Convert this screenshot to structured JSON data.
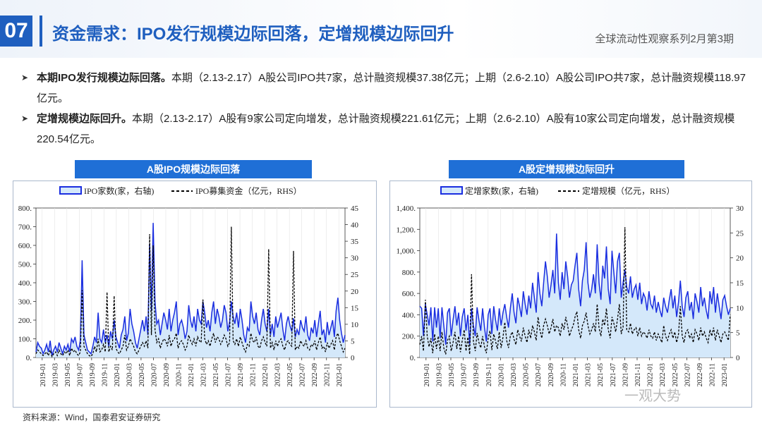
{
  "header": {
    "number": "07",
    "title": "资金需求：IPO发行规模边际回落，定增规模边际回升",
    "series": "全球流动性观察系列2月第3期"
  },
  "bullets": [
    {
      "bold": "本期IPO发行规模边际回落。",
      "text": "本期（2.13-2.17）A股公司IPO共7家，总计融资规模37.38亿元；上期（2.6-2.10）A股公司IPO共7家，总计融资规模118.97亿元。"
    },
    {
      "bold": "定增规模边际回升。",
      "text": "本期（2.13-2.17）A股有9家公司定向增发，总计融资规模221.61亿元；上期（2.6-2.10）A股有10家公司定向增发，总计融资规模220.54亿元。"
    }
  ],
  "footer": {
    "source": "资料来源：Wind，国泰君安证券研究",
    "watermark": "一观大势"
  },
  "colors": {
    "accent": "#1f5fbf",
    "header_bar": "#1f6fd6",
    "area_line": "#1a2ee0",
    "area_fill": "#d4e8fa"
  },
  "chart_data": [
    {
      "type": "line",
      "title": "A股IPO规模边际回落",
      "legend": [
        "IPO家数(家，右轴)",
        "IPO募集资金（亿元，RHS）"
      ],
      "legend_position": "top",
      "x_ticks": [
        "2019-01",
        "2019-03",
        "2019-05",
        "2019-07",
        "2019-09",
        "2019-11",
        "2020-01",
        "2020-03",
        "2020-05",
        "2020-07",
        "2020-09",
        "2020-11",
        "2021-01",
        "2021-03",
        "2021-05",
        "2021-07",
        "2021-09",
        "2021-11",
        "2022-01",
        "2022-03",
        "2022-05",
        "2022-07",
        "2022-09",
        "2022-11",
        "2023-01"
      ],
      "left_axis": {
        "ticks": [
          "0.",
          "100.",
          "200.",
          "300.",
          "400.",
          "500.",
          "600.",
          "700.",
          "800."
        ],
        "range": [
          0,
          800
        ]
      },
      "right_axis": {
        "ticks": [
          "0",
          "5",
          "10",
          "15",
          "20",
          "25",
          "30",
          "35",
          "40",
          "45"
        ],
        "range": [
          0,
          45
        ]
      },
      "series": [
        {
          "name": "IPO家数(家，右轴)",
          "style": "area",
          "axis": "left",
          "values": [
            30,
            80,
            60,
            50,
            20,
            40,
            70,
            30,
            90,
            10,
            40,
            60,
            30,
            80,
            50,
            20,
            60,
            40,
            70,
            30,
            100,
            80,
            110,
            60,
            40,
            90,
            520,
            120,
            80,
            40,
            30,
            20,
            60,
            110,
            80,
            240,
            100,
            80,
            150,
            80,
            120,
            60,
            140,
            100,
            200,
            110,
            80,
            50,
            120,
            150,
            220,
            90,
            130,
            260,
            180,
            140,
            80,
            50,
            100,
            150,
            200,
            140,
            220,
            120,
            610,
            250,
            720,
            300,
            180,
            200,
            120,
            180,
            240,
            200,
            150,
            260,
            140,
            200,
            240,
            300,
            120,
            180,
            200,
            160,
            100,
            140,
            280,
            200,
            160,
            220,
            140,
            260,
            200,
            180,
            300,
            240,
            160,
            200,
            140,
            240,
            300,
            180,
            260,
            220,
            160,
            200,
            280,
            240,
            140,
            190,
            300,
            220,
            180,
            240,
            160,
            260,
            200,
            120,
            80,
            160,
            140,
            300,
            220,
            180,
            240,
            150,
            120,
            200,
            260,
            180,
            140,
            260,
            120,
            180,
            110,
            220,
            160,
            200,
            240,
            150,
            90,
            180,
            220,
            170,
            140,
            210,
            110,
            150,
            120,
            200,
            160,
            140,
            220,
            120,
            90,
            160,
            130,
            200,
            110,
            180,
            250,
            120,
            150,
            80,
            190,
            120,
            160,
            200,
            110,
            250,
            320,
            200,
            130,
            80,
            120
          ]
        },
        {
          "name": "IPO募集资金（亿元，RHS）",
          "style": "dashed",
          "axis": "left",
          "values": [
            20,
            40,
            30,
            20,
            10,
            20,
            30,
            10,
            40,
            5,
            20,
            30,
            10,
            40,
            20,
            10,
            30,
            20,
            40,
            10,
            50,
            30,
            40,
            20,
            10,
            30,
            360,
            60,
            40,
            20,
            10,
            5,
            20,
            60,
            30,
            100,
            30,
            40,
            70,
            30,
            350,
            30,
            60,
            40,
            330,
            50,
            30,
            20,
            40,
            60,
            120,
            40,
            60,
            100,
            80,
            60,
            30,
            20,
            40,
            60,
            80,
            60,
            90,
            50,
            660,
            120,
            600,
            150,
            80,
            100,
            50,
            80,
            100,
            90,
            60,
            120,
            60,
            90,
            100,
            130,
            50,
            80,
            90,
            70,
            40,
            60,
            120,
            90,
            70,
            100,
            60,
            110,
            90,
            80,
            310,
            100,
            70,
            90,
            60,
            100,
            130,
            80,
            110,
            100,
            70,
            90,
            120,
            100,
            60,
            80,
            700,
            90,
            70,
            100,
            60,
            110,
            80,
            50,
            30,
            70,
            60,
            130,
            90,
            80,
            110,
            60,
            50,
            90,
            110,
            80,
            60,
            580,
            50,
            80,
            40,
            90,
            60,
            90,
            100,
            60,
            40,
            80,
            90,
            70,
            60,
            570,
            40,
            60,
            50,
            90,
            70,
            60,
            90,
            50,
            40,
            70,
            60,
            90,
            40,
            80,
            110,
            50,
            60,
            30,
            80,
            50,
            70,
            90,
            40,
            110,
            130,
            90,
            60,
            30,
            50
          ]
        }
      ]
    },
    {
      "type": "line",
      "title": "A股定增规模边际回升",
      "legend": [
        "定增家数(家，右轴)",
        "定增规模（亿元，RHS）"
      ],
      "legend_position": "top",
      "x_ticks": [
        "2019-01",
        "2019-03",
        "2019-05",
        "2019-07",
        "2019-09",
        "2019-11",
        "2020-01",
        "2020-03",
        "2020-05",
        "2020-07",
        "2020-09",
        "2020-11",
        "2021-01",
        "2021-03",
        "2021-05",
        "2021-07",
        "2021-09",
        "2021-11",
        "2022-01",
        "2022-03",
        "2022-05",
        "2022-07",
        "2022-09",
        "2022-11",
        "2023-01"
      ],
      "left_axis": {
        "ticks": [
          "0.",
          "200.",
          "400.",
          "600.",
          "800.",
          "1,000.",
          "1,200.",
          "1,400."
        ],
        "range": [
          0,
          1400
        ]
      },
      "right_axis": {
        "ticks": [
          "0",
          "5",
          "10",
          "15",
          "20",
          "25",
          "30"
        ],
        "range": [
          0,
          30
        ]
      },
      "series": [
        {
          "name": "定增家数(家，右轴)",
          "style": "area",
          "axis": "left",
          "values": [
            480,
            460,
            200,
            500,
            400,
            300,
            470,
            150,
            470,
            280,
            460,
            180,
            470,
            300,
            120,
            420,
            460,
            200,
            350,
            480,
            300,
            420,
            200,
            380,
            460,
            250,
            400,
            120,
            460,
            300,
            200,
            470,
            350,
            250,
            460,
            280,
            150,
            400,
            460,
            220,
            480,
            350,
            250,
            460,
            300,
            420,
            500,
            380,
            280,
            460,
            600,
            420,
            320,
            560,
            480,
            380,
            620,
            500,
            400,
            580,
            460,
            700,
            560,
            420,
            800,
            600,
            480,
            700,
            900,
            760,
            560,
            680,
            820,
            600,
            1160,
            700,
            540,
            800,
            640,
            900,
            760,
            560,
            680,
            720,
            860,
            980,
            640,
            480,
            720,
            820,
            1080,
            700,
            560,
            640,
            780,
            600,
            1060,
            700,
            540,
            860,
            740,
            1040,
            640,
            500,
            1000,
            800,
            600,
            900,
            980,
            560,
            700,
            820,
            660,
            600,
            760,
            560,
            640,
            680,
            540,
            700,
            500,
            600,
            560,
            440,
            620,
            500,
            460,
            580,
            420,
            520,
            440,
            380,
            560,
            480,
            420,
            540,
            640,
            460,
            580,
            380,
            520,
            720,
            480,
            380,
            560,
            620,
            440,
            520,
            360,
            600,
            520,
            420,
            660,
            480,
            560,
            440,
            360,
            620,
            500,
            660,
            420,
            600,
            480,
            360,
            540,
            580,
            480,
            400,
            460
          ]
        },
        {
          "name": "定增规模（亿元，RHS）",
          "style": "dashed",
          "axis": "left",
          "values": [
            120,
            200,
            60,
            540,
            200,
            100,
            180,
            40,
            220,
            80,
            200,
            60,
            240,
            90,
            30,
            160,
            200,
            60,
            140,
            240,
            80,
            200,
            50,
            160,
            260,
            60,
            190,
            30,
            780,
            150,
            60,
            230,
            140,
            90,
            200,
            100,
            40,
            180,
            250,
            70,
            220,
            150,
            80,
            240,
            90,
            190,
            330,
            160,
            90,
            200,
            240,
            170,
            120,
            260,
            200,
            150,
            280,
            200,
            140,
            260,
            180,
            300,
            240,
            160,
            380,
            260,
            180,
            300,
            360,
            300,
            220,
            280,
            360,
            240,
            300,
            280,
            200,
            320,
            260,
            380,
            300,
            200,
            260,
            300,
            380,
            430,
            260,
            180,
            300,
            340,
            420,
            300,
            220,
            260,
            320,
            240,
            500,
            280,
            200,
            360,
            300,
            460,
            260,
            180,
            380,
            320,
            240,
            360,
            500,
            220,
            280,
            1220,
            260,
            240,
            320,
            220,
            260,
            280,
            200,
            280,
            200,
            240,
            220,
            180,
            260,
            200,
            180,
            240,
            160,
            220,
            180,
            140,
            300,
            200,
            160,
            220,
            260,
            180,
            240,
            140,
            220,
            480,
            200,
            140,
            240,
            260,
            180,
            220,
            140,
            260,
            220,
            160,
            280,
            200,
            240,
            180,
            140,
            260,
            200,
            280,
            160,
            260,
            200,
            140,
            220,
            240,
            200,
            160,
            400
          ]
        }
      ]
    }
  ]
}
